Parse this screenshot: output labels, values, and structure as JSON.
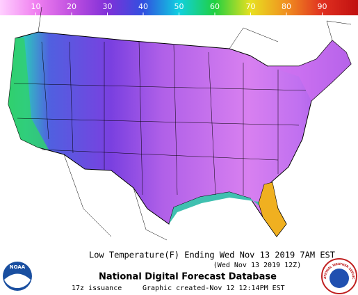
{
  "legend": {
    "range": [
      0,
      100
    ],
    "ticks": [
      10,
      20,
      30,
      40,
      50,
      60,
      70,
      80,
      90
    ]
  },
  "caption": {
    "title": "Low Temperature(F) Ending Wed Nov 13 2019  7AM EST",
    "utc": "(Wed Nov 13 2019 12Z)",
    "product": "National Digital Forecast Database",
    "issuance": "17z issuance",
    "created": "Graphic created-Nov 12 12:14PM EST"
  },
  "logos": {
    "noaa": "NOAA",
    "nws": "NATIONAL WEATHER SERVICE"
  }
}
